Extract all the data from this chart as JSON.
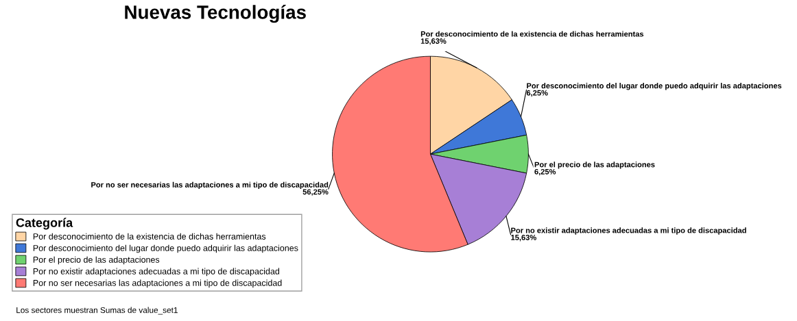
{
  "chart_data": {
    "type": "pie",
    "title": "Nuevas Tecnologías",
    "categories": [
      "Por desconocimiento de la existencia de dichas herramientas",
      "Por desconocimiento del lugar donde puedo adquirir las adaptaciones",
      "Por el precio de las adaptaciones",
      "Por no existir adaptaciones adecuadas a mi tipo de discapacidad",
      "Por no ser necesarias las adaptaciones a mi tipo de discapacidad"
    ],
    "values": [
      15.63,
      6.25,
      6.25,
      15.63,
      56.25
    ],
    "value_labels": [
      "15,63%",
      "6,25%",
      "6,25%",
      "15,63%",
      "56,25%"
    ],
    "colors": [
      "#ffd5a5",
      "#3f78d8",
      "#6fd26f",
      "#a77fd6",
      "#ff7a74"
    ],
    "legend": "bottom left",
    "legend_title": "Categoría",
    "annotations": [
      "Los sectores muestran Sumas de value_set1"
    ]
  }
}
